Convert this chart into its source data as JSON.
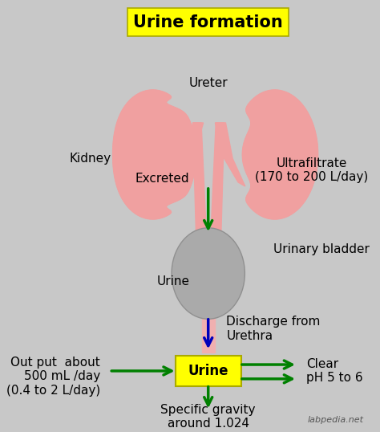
{
  "title": "Urine formation",
  "title_bg": "#FFFF00",
  "bg_color": "#C8C8C8",
  "kidney_color": "#F0A0A0",
  "bladder_color": "#AAAAAA",
  "urethra_color": "#F0B0B0",
  "urine_box_bg": "#FFFF00",
  "arrow_green": "#008000",
  "arrow_blue": "#0000BB",
  "text_color": "#000000",
  "labels": {
    "ureter": "Ureter",
    "kidney": "Kidney",
    "excreted": "Excreted",
    "ultrafiltrate": "Ultrafiltrate\n(170 to 200 L/day)",
    "urine_bladder_label": "Urine",
    "urinary_bladder": "Urinary bladder",
    "discharge": "Discharge from\nUrethra",
    "urine_box": "Urine",
    "output": "Out put  about\n500 mL /day\n(0.4 to 2 L/day)",
    "clear": "Clear\npH 5 to 6",
    "specific_gravity": "Specific gravity\naround 1.024",
    "watermark": "labpedia.net"
  }
}
